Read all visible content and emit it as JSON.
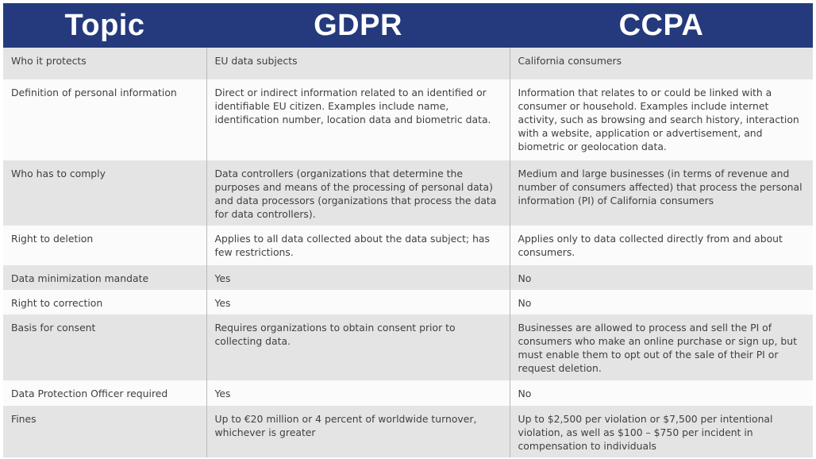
{
  "table": {
    "headers": [
      "Topic",
      "GDPR",
      "CCPA"
    ],
    "rows": [
      [
        "Who it protects",
        "EU data subjects",
        "California consumers"
      ],
      [
        "Definition of personal information",
        "Direct or indirect information related to an identified or identifiable EU citizen. Examples include name, identification number, location data and biometric data.",
        "Information that relates to or could be linked with a consumer or household. Examples include internet activity, such as browsing and search history, interaction with a website, application or advertisement, and biometric or geolocation data."
      ],
      [
        "Who has to comply",
        "Data controllers (organizations that determine the purposes and means of the processing of personal data) and data processors (organizations that process the data for data controllers).",
        "Medium and large businesses (in terms of revenue and number of consumers affected) that process the personal information (PI) of California consumers"
      ],
      [
        "Right to deletion",
        "Applies to all data collected about the data subject; has few restrictions.",
        "Applies only to data collected directly from and about consumers."
      ],
      [
        "Data minimization mandate",
        "Yes",
        "No"
      ],
      [
        "Right to correction",
        "Yes",
        "No"
      ],
      [
        "Basis for consent",
        "Requires organizations to obtain consent prior to collecting data.",
        "Businesses are allowed to process and sell the PI of consumers who make an online purchase or sign up, but must enable them to opt out of the sale of their PI or request deletion."
      ],
      [
        "Data Protection Officer required",
        "Yes",
        "No"
      ],
      [
        "Fines",
        "Up to €20 million or 4 percent of worldwide turnover, whichever is greater",
        "Up to $2,500 per violation or $7,500 per intentional violation, as well as $100 – $750 per incident in compensation to individuals"
      ]
    ]
  }
}
